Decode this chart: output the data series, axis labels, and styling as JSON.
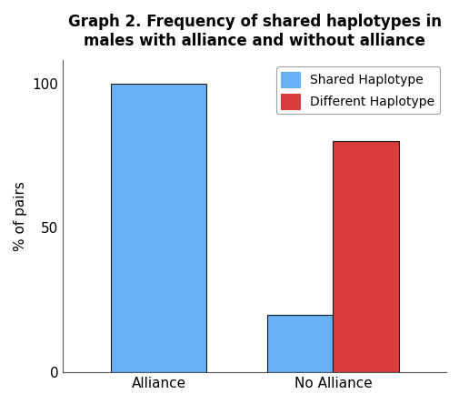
{
  "title": "Graph 2. Frequency of shared haplotypes in\nmales with alliance and without alliance",
  "ylabel": "% of pairs",
  "categories": [
    "Alliance",
    "No Alliance"
  ],
  "shared_haplotype": [
    100,
    20
  ],
  "different_haplotype": [
    0,
    80
  ],
  "bar_color_shared": "#6ab0f5",
  "bar_color_different": "#d93c3c",
  "bar_edgecolor": "#1a1a1a",
  "ylim": [
    0,
    108
  ],
  "yticks": [
    0,
    50,
    100
  ],
  "bar_width": 0.38,
  "alliance_bar_width": 0.55,
  "legend_labels": [
    "Shared Haplotype",
    "Different Haplotype"
  ],
  "title_fontsize": 12,
  "axis_fontsize": 11,
  "tick_fontsize": 11,
  "legend_fontsize": 10,
  "title_color": "#000000",
  "axis_label_color": "#000000",
  "tick_color": "#000000",
  "spine_color": "#555555"
}
